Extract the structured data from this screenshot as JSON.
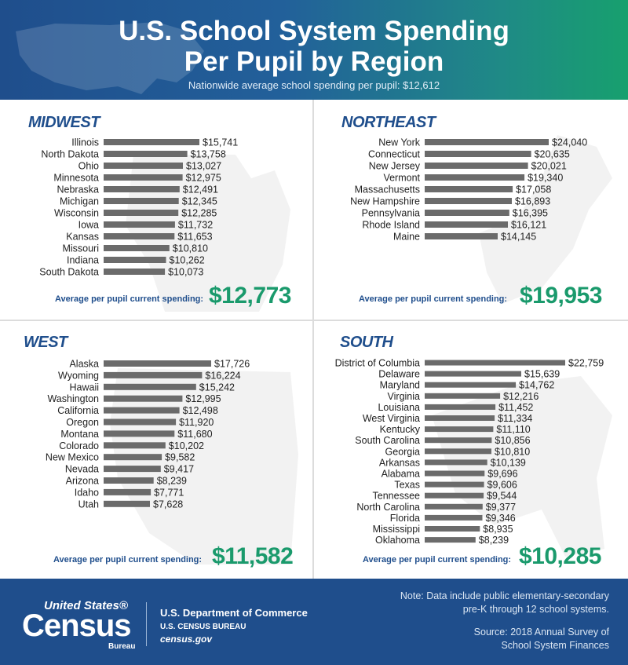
{
  "header": {
    "title_line1": "U.S. School System Spending",
    "title_line2": "Per Pupil by Region",
    "subtitle": "Nationwide average school spending per pupil: $12,612"
  },
  "colors": {
    "bar": "#6b6b6b",
    "title_blue": "#1f4e8c",
    "green": "#1a9a6c",
    "footer_bg": "#1f4e8c"
  },
  "avg_label": "Average per pupil current spending:",
  "chart_data": [
    {
      "type": "bar",
      "orientation": "horizontal",
      "title": "MIDWEST",
      "categories": [
        "Illinois",
        "North Dakota",
        "Ohio",
        "Minnesota",
        "Nebraska",
        "Michigan",
        "Wisconsin",
        "Iowa",
        "Kansas",
        "Missouri",
        "Indiana",
        "South Dakota"
      ],
      "values": [
        15741,
        13758,
        13027,
        12975,
        12491,
        12345,
        12285,
        11732,
        11653,
        10810,
        10262,
        10073
      ],
      "labels": [
        "$15,741",
        "$13,758",
        "$13,027",
        "$12,975",
        "$12,491",
        "$12,345",
        "$12,285",
        "$11,732",
        "$11,653",
        "$10,810",
        "$10,262",
        "$10,073"
      ],
      "average": "$12,773"
    },
    {
      "type": "bar",
      "orientation": "horizontal",
      "title": "NORTHEAST",
      "categories": [
        "New York",
        "Connecticut",
        "New Jersey",
        "Vermont",
        "Massachusetts",
        "New Hampshire",
        "Pennsylvania",
        "Rhode Island",
        "Maine"
      ],
      "values": [
        24040,
        20635,
        20021,
        19340,
        17058,
        16893,
        16395,
        16121,
        14145
      ],
      "labels": [
        "$24,040",
        "$20,635",
        "$20,021",
        "$19,340",
        "$17,058",
        "$16,893",
        "$16,395",
        "$16,121",
        "$14,145"
      ],
      "average": "$19,953"
    },
    {
      "type": "bar",
      "orientation": "horizontal",
      "title": "WEST",
      "categories": [
        "Alaska",
        "Wyoming",
        "Hawaii",
        "Washington",
        "California",
        "Oregon",
        "Montana",
        "Colorado",
        "New Mexico",
        "Nevada",
        "Arizona",
        "Idaho",
        "Utah"
      ],
      "values": [
        17726,
        16224,
        15242,
        12995,
        12498,
        11920,
        11680,
        10202,
        9582,
        9417,
        8239,
        7771,
        7628
      ],
      "labels": [
        "$17,726",
        "$16,224",
        "$15,242",
        "$12,995",
        "$12,498",
        "$11,920",
        "$11,680",
        "$10,202",
        "$9,582",
        "$9,417",
        "$8,239",
        "$7,771",
        "$7,628"
      ],
      "average": "$11,582"
    },
    {
      "type": "bar",
      "orientation": "horizontal",
      "title": "SOUTH",
      "categories": [
        "District of Columbia",
        "Delaware",
        "Maryland",
        "Virginia",
        "Louisiana",
        "West Virginia",
        "Kentucky",
        "South Carolina",
        "Georgia",
        "Arkansas",
        "Alabama",
        "Texas",
        "Tennessee",
        "North Carolina",
        "Florida",
        "Mississippi",
        "Oklahoma"
      ],
      "values": [
        22759,
        15639,
        14762,
        12216,
        11452,
        11334,
        11110,
        10856,
        10810,
        10139,
        9696,
        9606,
        9544,
        9377,
        9346,
        8935,
        8239
      ],
      "labels": [
        "$22,759",
        "$15,639",
        "$14,762",
        "$12,216",
        "$11,452",
        "$11,334",
        "$11,110",
        "$10,856",
        "$10,810",
        "$10,139",
        "$9,696",
        "$9,606",
        "$9,544",
        "$9,377",
        "$9,346",
        "$8,935",
        "$8,239"
      ],
      "average": "$10,285"
    }
  ],
  "footer": {
    "logo_united_states": "United States®",
    "logo_census": "Census",
    "logo_bureau": "Bureau",
    "dept_name": "U.S. Department of Commerce",
    "bureau_name": "U.S. CENSUS BUREAU",
    "website": "census.gov",
    "note_line1": "Note: Data include public elementary-secondary",
    "note_line2": "pre-K through 12 school systems.",
    "source_line1": "Source: 2018 Annual Survey of",
    "source_line2": "School System Finances"
  }
}
